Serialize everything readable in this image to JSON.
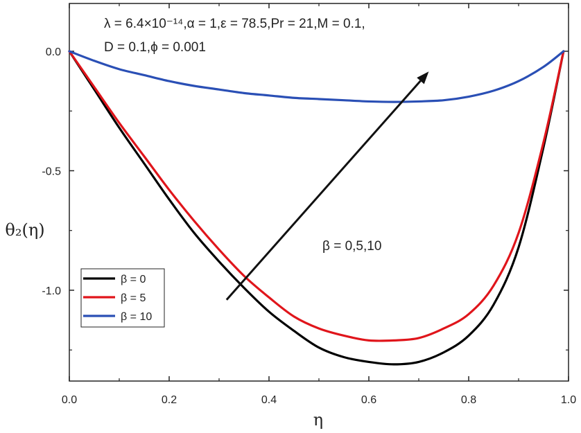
{
  "chart_data": {
    "type": "line",
    "xlabel": "η",
    "ylabel": "θ₂(η)",
    "xlim": [
      0,
      1
    ],
    "ylim": [
      -1.38,
      0.2
    ],
    "xticks": [
      "0.0",
      "0.2",
      "0.4",
      "0.6",
      "0.8",
      "1.0"
    ],
    "xtick_values": [
      0,
      0.2,
      0.4,
      0.6,
      0.8,
      1.0
    ],
    "yticks": [
      "0.0",
      "-0.5",
      "-1.0"
    ],
    "ytick_values": [
      0,
      -0.5,
      -1.0
    ],
    "grid": false,
    "legend_placement": "lower-left",
    "annotations": {
      "params_line1": "λ = 6.4×10⁻¹⁴,α = 1,ε = 78.5,Pr = 21,M = 0.1,",
      "params_line2": "D = 0.1,ϕ = 0.001",
      "arrow_label": "β = 0,5,10"
    },
    "series": [
      {
        "name": "β = 0",
        "color": "#000000",
        "x": [
          0,
          0.05,
          0.1,
          0.15,
          0.2,
          0.25,
          0.3,
          0.35,
          0.4,
          0.45,
          0.5,
          0.55,
          0.6,
          0.65,
          0.7,
          0.75,
          0.8,
          0.85,
          0.9,
          0.95,
          0.99
        ],
        "y": [
          0,
          -0.16,
          -0.32,
          -0.47,
          -0.62,
          -0.76,
          -0.88,
          -0.99,
          -1.09,
          -1.17,
          -1.24,
          -1.28,
          -1.3,
          -1.31,
          -1.3,
          -1.26,
          -1.19,
          -1.06,
          -0.82,
          -0.4,
          0
        ]
      },
      {
        "name": "β = 5",
        "color": "#e0151b",
        "x": [
          0,
          0.05,
          0.1,
          0.15,
          0.2,
          0.25,
          0.3,
          0.35,
          0.4,
          0.45,
          0.5,
          0.55,
          0.6,
          0.65,
          0.7,
          0.75,
          0.8,
          0.85,
          0.9,
          0.95,
          0.99
        ],
        "y": [
          0,
          -0.15,
          -0.3,
          -0.44,
          -0.58,
          -0.71,
          -0.83,
          -0.94,
          -1.03,
          -1.11,
          -1.16,
          -1.19,
          -1.21,
          -1.21,
          -1.2,
          -1.16,
          -1.1,
          -0.98,
          -0.76,
          -0.38,
          0
        ]
      },
      {
        "name": "β = 10",
        "color": "#2a4fb5",
        "x": [
          0,
          0.05,
          0.1,
          0.15,
          0.2,
          0.25,
          0.3,
          0.35,
          0.4,
          0.45,
          0.5,
          0.55,
          0.6,
          0.65,
          0.7,
          0.75,
          0.8,
          0.85,
          0.9,
          0.95,
          0.99
        ],
        "y": [
          0,
          -0.04,
          -0.075,
          -0.1,
          -0.125,
          -0.145,
          -0.16,
          -0.175,
          -0.185,
          -0.195,
          -0.2,
          -0.205,
          -0.21,
          -0.212,
          -0.21,
          -0.205,
          -0.19,
          -0.165,
          -0.125,
          -0.065,
          0
        ]
      }
    ],
    "arrow": {
      "x0": 0.315,
      "y0": -1.04,
      "x1": 0.72,
      "y1": -0.085
    }
  }
}
